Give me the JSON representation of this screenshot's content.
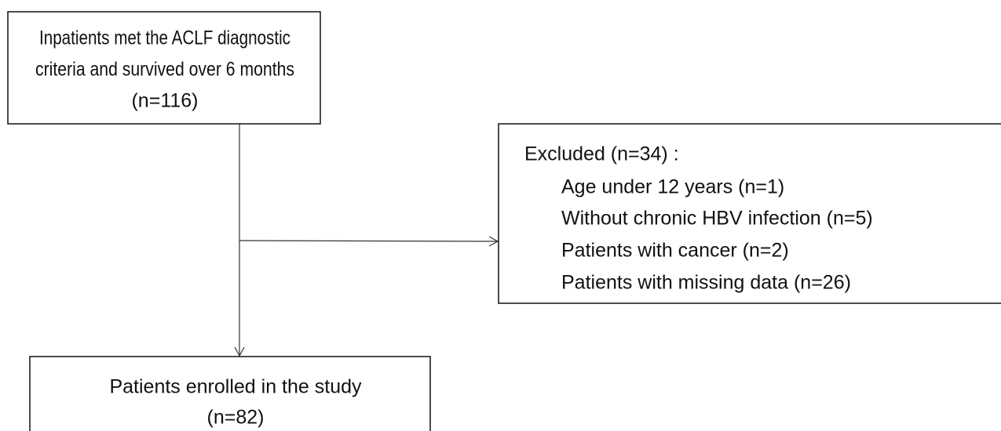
{
  "nodes": [
    {
      "lines": [
        "Inpatients met the ACLF diagnostic",
        "criteria and survived over 6 months",
        "(n=116)"
      ]
    },
    {
      "title": "Excluded (n=34) :",
      "items": [
        "Age under 12 years (n=1)",
        "Without chronic HBV infection (n=5)",
        "Patients with cancer (n=2)",
        "Patients with missing data (n=26)"
      ]
    },
    {
      "lines": [
        "Patients enrolled in the study",
        "(n=82)"
      ]
    }
  ]
}
